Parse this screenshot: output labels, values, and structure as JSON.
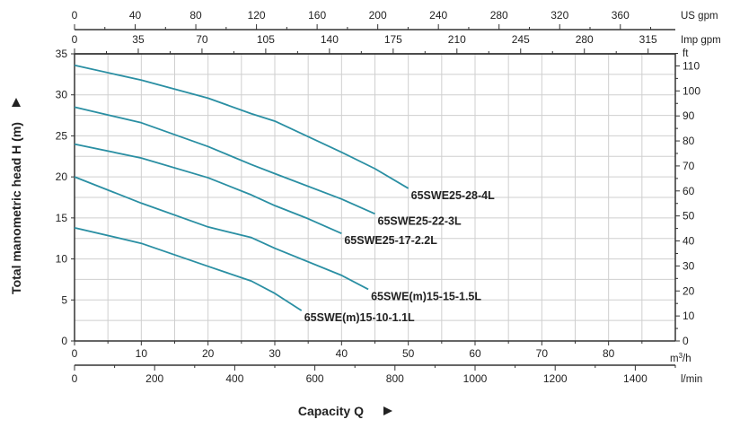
{
  "chart_data": {
    "type": "line",
    "xlabel": "Capacity Q",
    "ylabel": "Total manometric head H (m)",
    "xlim": [
      0,
      90
    ],
    "ylim": [
      0,
      35
    ],
    "grid": true,
    "x_unit": "m³/h",
    "y_unit": "m",
    "x_ticks": [
      0,
      10,
      20,
      30,
      40,
      50,
      60,
      70,
      80
    ],
    "y_ticks": [
      0,
      5,
      10,
      15,
      20,
      25,
      30,
      35
    ],
    "secondary_axes": {
      "us_gpm": {
        "unit": "US gpm",
        "ticks": [
          0,
          40,
          80,
          120,
          160,
          200,
          240,
          280,
          320,
          360
        ]
      },
      "imp_gpm": {
        "unit": "Imp gpm",
        "ticks": [
          0,
          35,
          70,
          105,
          140,
          175,
          210,
          245,
          280,
          315
        ]
      },
      "l_min": {
        "unit": "l/min",
        "ticks": [
          0,
          200,
          400,
          600,
          800,
          1000,
          1200,
          1400
        ]
      },
      "ft": {
        "unit": "ft",
        "ticks": [
          0,
          10,
          20,
          30,
          40,
          50,
          60,
          70,
          80,
          90,
          100,
          110
        ]
      }
    },
    "series": [
      {
        "name": "65SWE25-28-4L",
        "x": [
          0,
          10,
          20,
          26.5,
          30,
          40,
          45,
          50
        ],
        "y": [
          33.6,
          31.8,
          29.6,
          27.7,
          26.8,
          23.0,
          21.0,
          18.6
        ]
      },
      {
        "name": "65SWE25-22-3L",
        "x": [
          0,
          10,
          20,
          26.5,
          30,
          40,
          45
        ],
        "y": [
          28.5,
          26.6,
          23.7,
          21.5,
          20.4,
          17.3,
          15.5
        ]
      },
      {
        "name": "65SWE25-17-2.2L",
        "x": [
          0,
          10,
          20,
          26.5,
          30,
          35,
          40
        ],
        "y": [
          24.0,
          22.3,
          19.9,
          17.8,
          16.5,
          14.9,
          13.1
        ]
      },
      {
        "name": "65SWE(m)15-15-1.5L",
        "x": [
          0,
          10,
          20,
          26.5,
          30,
          40,
          44
        ],
        "y": [
          20.0,
          16.8,
          13.9,
          12.6,
          11.3,
          8.0,
          6.3
        ]
      },
      {
        "name": "65SWE(m)15-10-1.1L",
        "x": [
          0,
          10,
          20,
          26.5,
          30,
          34
        ],
        "y": [
          13.8,
          11.9,
          9.1,
          7.3,
          5.8,
          3.7
        ]
      }
    ],
    "line_color": "#2a8fa3"
  }
}
